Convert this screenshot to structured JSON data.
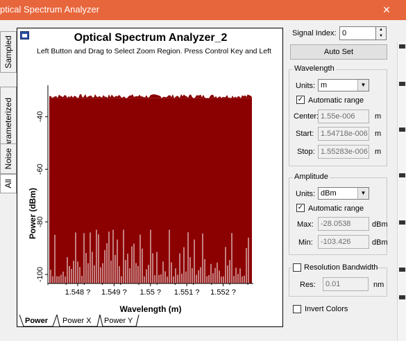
{
  "window": {
    "title": "ptical Spectrum Analyzer",
    "close_symbol": "✕"
  },
  "vertical_tabs": [
    "Sampled",
    "Parameterized",
    "Noise",
    "All"
  ],
  "chart_data": {
    "type": "area",
    "title": "Optical Spectrum Analyzer_2",
    "subtitle": "Left Button and Drag to Select Zoom Region. Press Control Key and Left",
    "xlabel": "Wavelength (m)",
    "ylabel": "Power (dBm)",
    "x_ticks": [
      "1.548 ?",
      "1.549 ?",
      "1.55 ?",
      "1.551 ?",
      "1.552 ?"
    ],
    "y_ticks": [
      "-40",
      "-60",
      "-80",
      "-100"
    ],
    "x_range": [
      1.54718e-06,
      1.55283e-06
    ],
    "ylim": [
      -103.426,
      -28.0538
    ],
    "series": [
      {
        "values_top": -33.0,
        "noise_floor_max": -83.0,
        "noise_floor_min": -103.0,
        "color": "#8b0000"
      }
    ]
  },
  "bottom_tabs": [
    "Power",
    "Power X",
    "Power Y"
  ],
  "panel": {
    "signal_index_label": "Signal Index:",
    "signal_index_value": "0",
    "auto_set_label": "Auto Set",
    "wavelength": {
      "legend": "Wavelength",
      "units_label": "Units:",
      "units_value": "m",
      "auto_range_label": "Automatic range",
      "auto_range_checked": "✓",
      "center_label": "Center:",
      "center_value": "1.55e-006",
      "center_unit": "m",
      "start_label": "Start:",
      "start_value": "1.54718e-006",
      "start_unit": "m",
      "stop_label": "Stop:",
      "stop_value": "1.55283e-006",
      "stop_unit": "m"
    },
    "amplitude": {
      "legend": "Amplitude",
      "units_label": "Units:",
      "units_value": "dBm",
      "auto_range_label": "Automatic range",
      "auto_range_checked": "✓",
      "max_label": "Max:",
      "max_value": "-28.0538",
      "max_unit": "dBm",
      "min_label": "Min:",
      "min_value": "-103.426",
      "min_unit": "dBm"
    },
    "resolution": {
      "label": "Resolution Bandwidth",
      "res_label": "Res:",
      "res_value": "0.01",
      "res_unit": "nm"
    },
    "invert_colors_label": "Invert Colors"
  }
}
